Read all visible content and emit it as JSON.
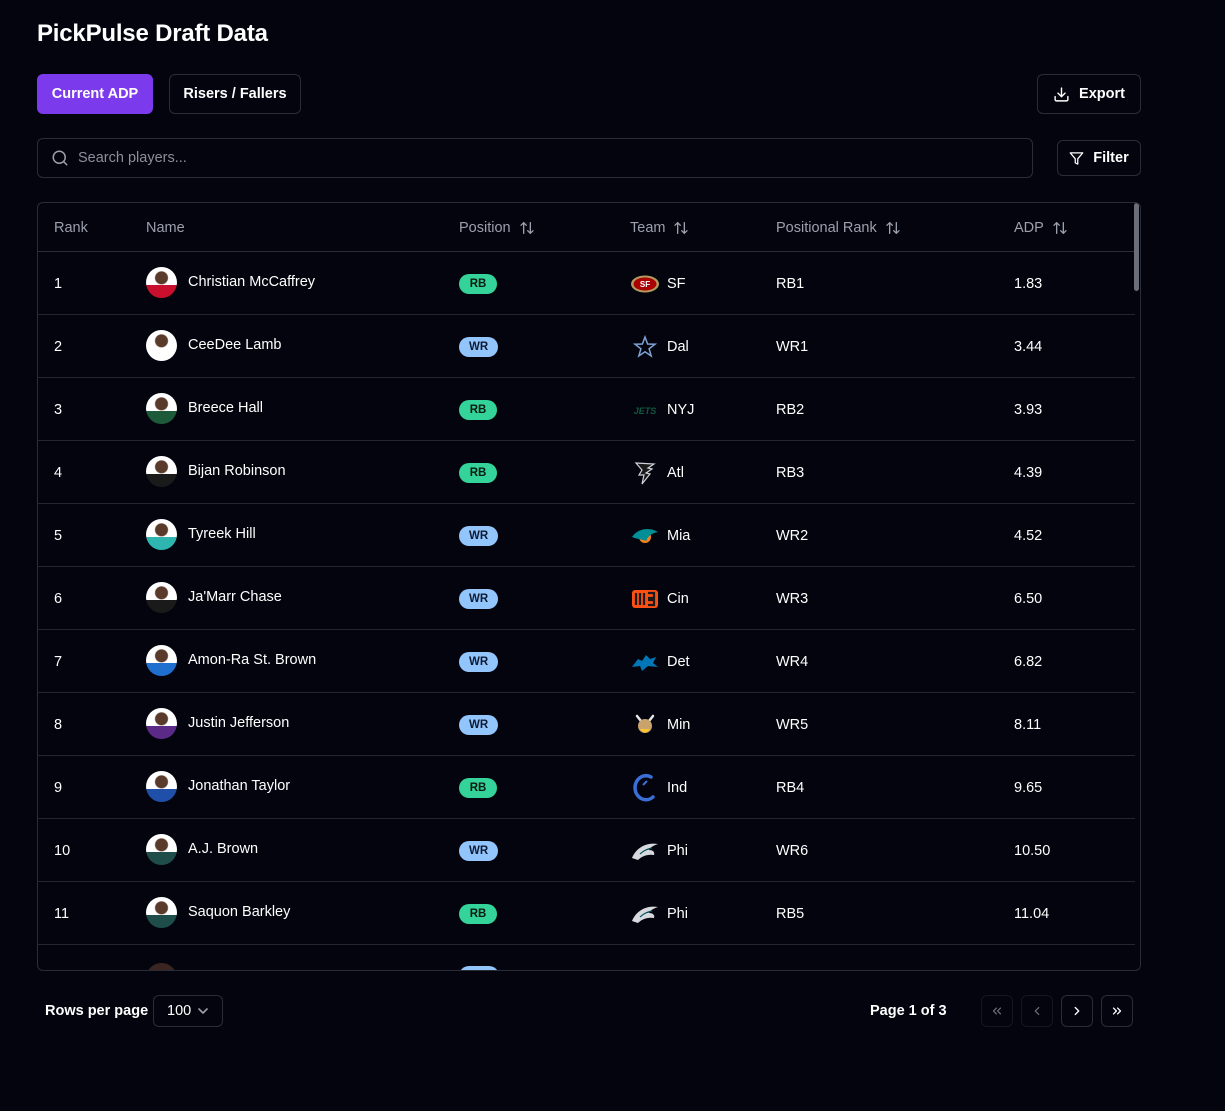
{
  "header": {
    "title": "PickPulse Draft Data"
  },
  "tabs": [
    {
      "label": "Current ADP",
      "active": true
    },
    {
      "label": "Risers / Fallers",
      "active": false
    }
  ],
  "actions": {
    "export_label": "Export",
    "filter_label": "Filter"
  },
  "search": {
    "placeholder": "Search players...",
    "value": ""
  },
  "table": {
    "columns": [
      "Rank",
      "Name",
      "Position",
      "Team",
      "Positional Rank",
      "ADP"
    ],
    "sortable_columns": [
      "Position",
      "Team",
      "Positional Rank",
      "ADP"
    ],
    "rows": [
      {
        "rank": "1",
        "name": "Christian McCaffrey",
        "position": "RB",
        "team": "SF",
        "team_icon": "49ers-logo",
        "positional_rank": "RB1",
        "adp": "1.83"
      },
      {
        "rank": "2",
        "name": "CeeDee Lamb",
        "position": "WR",
        "team": "Dal",
        "team_icon": "cowboys-logo",
        "positional_rank": "WR1",
        "adp": "3.44"
      },
      {
        "rank": "3",
        "name": "Breece Hall",
        "position": "RB",
        "team": "NYJ",
        "team_icon": "jets-logo",
        "positional_rank": "RB2",
        "adp": "3.93"
      },
      {
        "rank": "4",
        "name": "Bijan Robinson",
        "position": "RB",
        "team": "Atl",
        "team_icon": "falcons-logo",
        "positional_rank": "RB3",
        "adp": "4.39"
      },
      {
        "rank": "5",
        "name": "Tyreek Hill",
        "position": "WR",
        "team": "Mia",
        "team_icon": "dolphins-logo",
        "positional_rank": "WR2",
        "adp": "4.52"
      },
      {
        "rank": "6",
        "name": "Ja'Marr Chase",
        "position": "WR",
        "team": "Cin",
        "team_icon": "bengals-logo",
        "positional_rank": "WR3",
        "adp": "6.50"
      },
      {
        "rank": "7",
        "name": "Amon-Ra St. Brown",
        "position": "WR",
        "team": "Det",
        "team_icon": "lions-logo",
        "positional_rank": "WR4",
        "adp": "6.82"
      },
      {
        "rank": "8",
        "name": "Justin Jefferson",
        "position": "WR",
        "team": "Min",
        "team_icon": "vikings-logo",
        "positional_rank": "WR5",
        "adp": "8.11"
      },
      {
        "rank": "9",
        "name": "Jonathan Taylor",
        "position": "RB",
        "team": "Ind",
        "team_icon": "colts-logo",
        "positional_rank": "RB4",
        "adp": "9.65"
      },
      {
        "rank": "10",
        "name": "A.J. Brown",
        "position": "WR",
        "team": "Phi",
        "team_icon": "eagles-logo",
        "positional_rank": "WR6",
        "adp": "10.50"
      },
      {
        "rank": "11",
        "name": "Saquon Barkley",
        "position": "RB",
        "team": "Phi",
        "team_icon": "eagles-logo",
        "positional_rank": "RB5",
        "adp": "11.04"
      }
    ]
  },
  "pagination": {
    "rows_per_page_label": "Rows per page",
    "rows_per_page_value": "100",
    "page_info": "Page 1 of 3"
  },
  "colors": {
    "accent": "#7c3aed",
    "rb_badge": "#34d399",
    "wr_badge": "#93c5fd",
    "background": "#03040d"
  }
}
